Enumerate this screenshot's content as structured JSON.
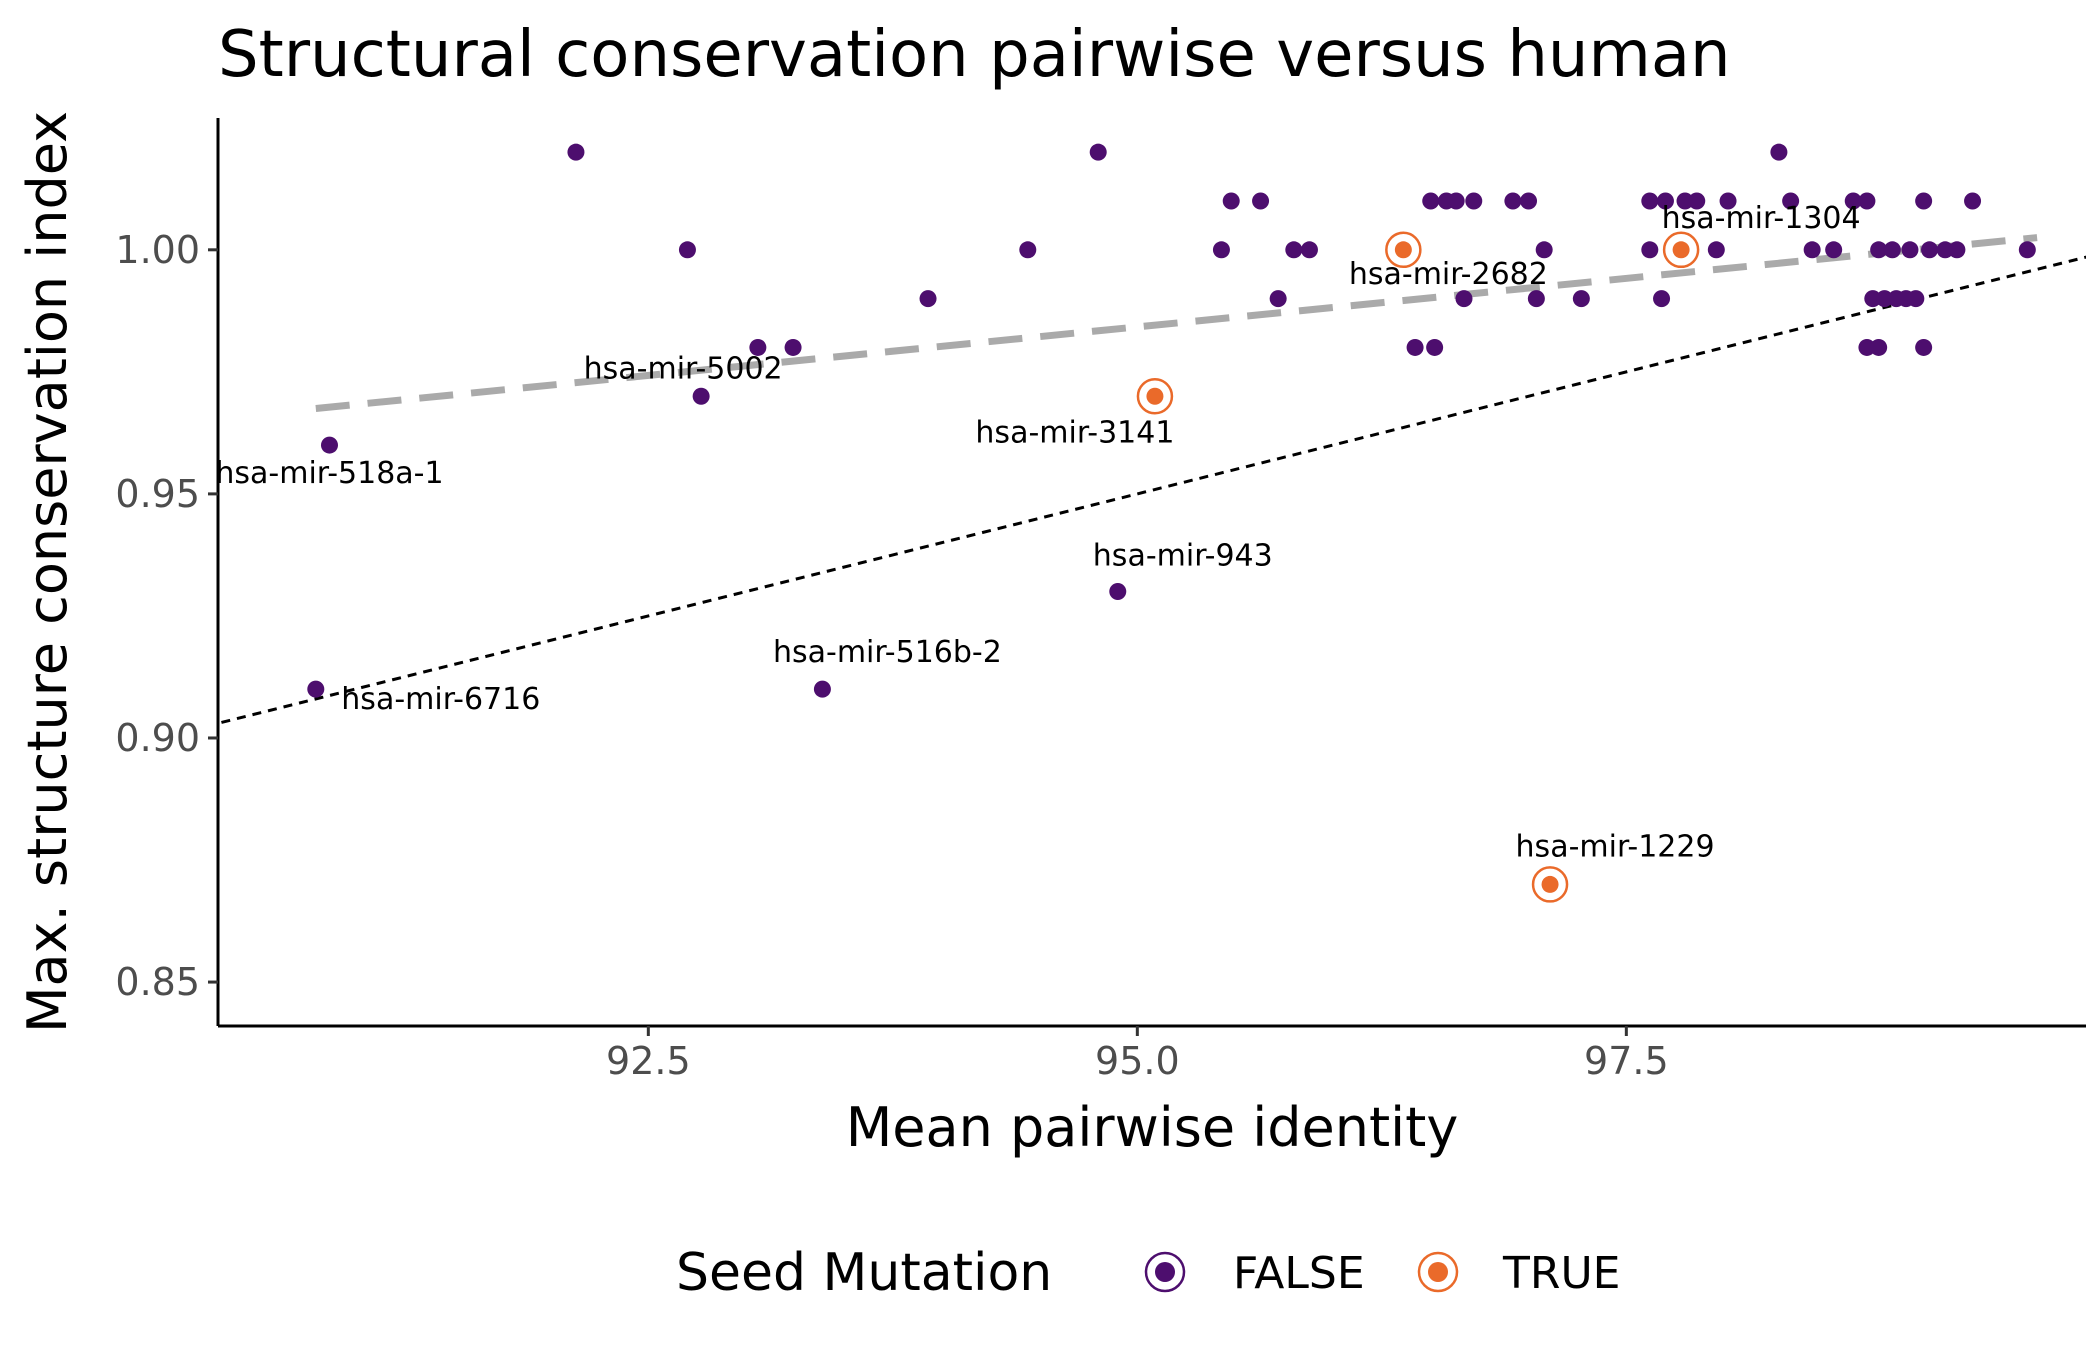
{
  "chart_data": {
    "type": "scatter",
    "title": "Structural conservation pairwise versus human",
    "xlabel": "Mean pairwise identity",
    "ylabel": "Max. structure conservation index",
    "xlim": [
      90.3,
      99.85
    ],
    "ylim": [
      0.841,
      1.027
    ],
    "x_ticks": [
      92.5,
      95.0,
      97.5
    ],
    "x_tick_labels": [
      "92.5",
      "95.0",
      "97.5"
    ],
    "y_ticks": [
      0.85,
      0.9,
      0.95,
      1.0
    ],
    "y_tick_labels": [
      "0.85",
      "0.90",
      "0.95",
      "1.00"
    ],
    "grid": false,
    "legend": {
      "title": "Seed Mutation",
      "position": "bottom",
      "entries": [
        {
          "label": "FALSE",
          "color": "#4d0e6e"
        },
        {
          "label": "TRUE",
          "color": "#ea6a2a"
        }
      ]
    },
    "colors": {
      "false": "#4d0e6e",
      "true": "#ea6a2a",
      "trend": "#aaaaaa",
      "identity": "#000000"
    },
    "series": [
      {
        "name": "FALSE",
        "points": [
          [
            90.8,
            0.91
          ],
          [
            90.87,
            0.96
          ],
          [
            92.13,
            1.02
          ],
          [
            92.7,
            1.0
          ],
          [
            92.77,
            0.97
          ],
          [
            93.06,
            0.98
          ],
          [
            93.24,
            0.98
          ],
          [
            93.39,
            0.91
          ],
          [
            93.93,
            0.99
          ],
          [
            94.44,
            1.0
          ],
          [
            94.8,
            1.02
          ],
          [
            94.9,
            0.93
          ],
          [
            95.43,
            1.0
          ],
          [
            95.48,
            1.01
          ],
          [
            95.63,
            1.01
          ],
          [
            95.72,
            0.99
          ],
          [
            95.8,
            1.0
          ],
          [
            95.88,
            1.0
          ],
          [
            96.42,
            0.98
          ],
          [
            96.52,
            0.98
          ],
          [
            96.5,
            1.01
          ],
          [
            96.58,
            1.01
          ],
          [
            96.63,
            1.01
          ],
          [
            96.67,
            0.99
          ],
          [
            96.72,
            1.01
          ],
          [
            96.92,
            1.01
          ],
          [
            97.0,
            1.01
          ],
          [
            97.04,
            0.99
          ],
          [
            97.08,
            1.0
          ],
          [
            97.27,
            0.99
          ],
          [
            97.62,
            1.0
          ],
          [
            97.62,
            1.01
          ],
          [
            97.68,
            0.99
          ],
          [
            97.7,
            1.01
          ],
          [
            97.8,
            1.01
          ],
          [
            97.86,
            1.01
          ],
          [
            97.96,
            1.0
          ],
          [
            98.02,
            1.01
          ],
          [
            98.28,
            1.02
          ],
          [
            98.34,
            1.01
          ],
          [
            98.45,
            1.0
          ],
          [
            98.56,
            1.0
          ],
          [
            98.66,
            1.01
          ],
          [
            98.73,
            1.01
          ],
          [
            98.73,
            0.98
          ],
          [
            98.79,
            0.98
          ],
          [
            98.76,
            0.99
          ],
          [
            98.79,
            1.0
          ],
          [
            98.82,
            0.99
          ],
          [
            98.86,
            1.0
          ],
          [
            98.88,
            0.99
          ],
          [
            98.93,
            0.99
          ],
          [
            98.98,
            0.99
          ],
          [
            98.95,
            1.0
          ],
          [
            99.02,
            1.01
          ],
          [
            99.02,
            0.98
          ],
          [
            99.05,
            1.0
          ],
          [
            99.13,
            1.0
          ],
          [
            99.19,
            1.0
          ],
          [
            99.27,
            1.01
          ],
          [
            99.55,
            1.0
          ]
        ]
      },
      {
        "name": "TRUE",
        "points": [
          [
            95.09,
            0.97
          ],
          [
            96.36,
            1.0
          ],
          [
            97.11,
            0.87
          ],
          [
            97.78,
            1.0
          ]
        ]
      }
    ],
    "annotations": [
      {
        "text": "hsa-mir-518a-1",
        "x": 90.87,
        "y": 0.96,
        "dx": 0,
        "dy": 38
      },
      {
        "text": "hsa-mir-5002",
        "x": 92.77,
        "y": 0.97,
        "dx": -18,
        "dy": -18
      },
      {
        "text": "hsa-mir-3141",
        "x": 95.09,
        "y": 0.97,
        "dx": -80,
        "dy": 46
      },
      {
        "text": "hsa-mir-2682",
        "x": 96.36,
        "y": 1.0,
        "dx": 45,
        "dy": 34
      },
      {
        "text": "hsa-mir-1304",
        "x": 97.78,
        "y": 1.0,
        "dx": 80,
        "dy": -22
      },
      {
        "text": "hsa-mir-943",
        "x": 94.9,
        "y": 0.93,
        "dx": 65,
        "dy": -26
      },
      {
        "text": "hsa-mir-516b-2",
        "x": 93.39,
        "y": 0.91,
        "dx": 65,
        "dy": -27
      },
      {
        "text": "hsa-mir-6716",
        "x": 90.8,
        "y": 0.91,
        "dx": 125,
        "dy": 20
      },
      {
        "text": "hsa-mir-1229",
        "x": 97.11,
        "y": 0.87,
        "dx": 65,
        "dy": -28
      }
    ],
    "trend_line": {
      "x": [
        90.8,
        99.6
      ],
      "y": [
        0.9675,
        1.0025
      ],
      "style": "dashed-gray"
    },
    "identity_line": {
      "x": [
        90.0,
        100.0
      ],
      "y": [
        0.9,
        1.0
      ],
      "style": "dotted-black"
    }
  }
}
